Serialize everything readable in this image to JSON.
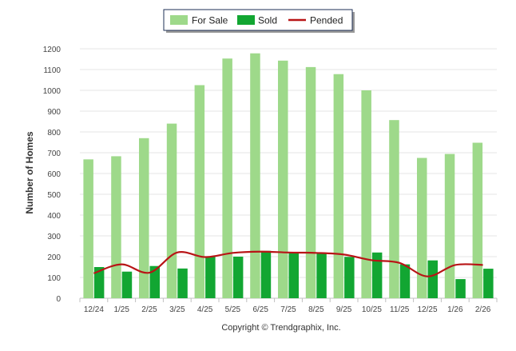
{
  "chart_data": {
    "type": "bar",
    "title": "",
    "xlabel": "",
    "ylabel": "Number of Homes",
    "ylim": [
      0,
      1200
    ],
    "yticks": [
      0,
      100,
      200,
      300,
      400,
      500,
      600,
      700,
      800,
      900,
      1000,
      1100,
      1200
    ],
    "grid": true,
    "legend_position": "top-center",
    "categories": [
      "12/24",
      "1/25",
      "2/25",
      "3/25",
      "4/25",
      "5/25",
      "6/25",
      "7/25",
      "8/25",
      "9/25",
      "10/25",
      "11/25",
      "12/25",
      "1/26",
      "2/26"
    ],
    "series": [
      {
        "name": "For Sale",
        "kind": "bar",
        "color": "#9ed98a",
        "values": [
          668,
          683,
          770,
          840,
          1025,
          1153,
          1178,
          1143,
          1112,
          1078,
          1000,
          857,
          675,
          694,
          748
        ]
      },
      {
        "name": "Sold",
        "kind": "bar",
        "color": "#12a632",
        "values": [
          150,
          128,
          155,
          143,
          202,
          200,
          228,
          222,
          216,
          199,
          220,
          163,
          182,
          92,
          142
        ]
      },
      {
        "name": "Pended",
        "kind": "line",
        "color": "#b81416",
        "values": [
          120,
          163,
          123,
          220,
          198,
          218,
          224,
          220,
          218,
          210,
          183,
          170,
          105,
          160,
          160
        ]
      }
    ],
    "footer": "Copyright © Trendgraphix, Inc."
  }
}
